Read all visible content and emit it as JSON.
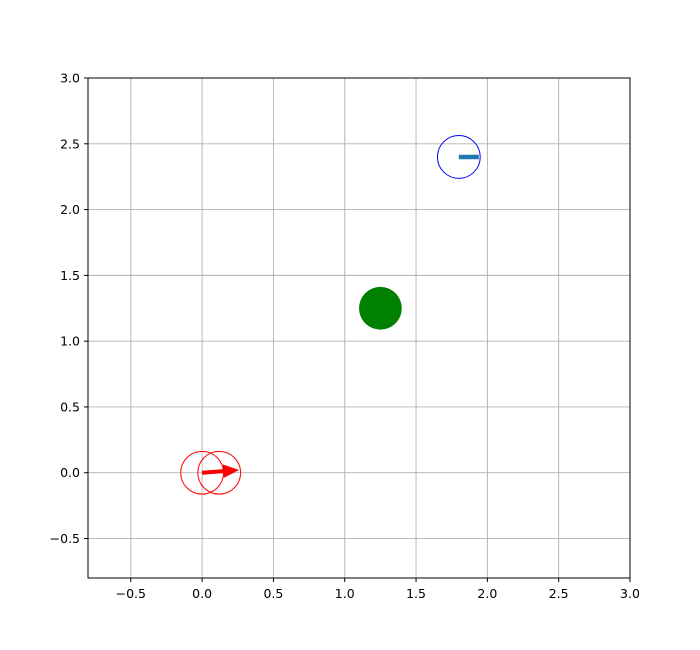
{
  "chart_data": {
    "type": "scatter",
    "title": "",
    "xlabel": "",
    "ylabel": "",
    "xlim": [
      -0.8,
      3.0
    ],
    "ylim": [
      -0.8,
      3.0
    ],
    "grid": true,
    "x_ticks": [
      -0.5,
      0.0,
      0.5,
      1.0,
      1.5,
      2.0,
      2.5,
      3.0
    ],
    "y_ticks": [
      -0.5,
      0.0,
      0.5,
      1.0,
      1.5,
      2.0,
      2.5,
      3.0
    ],
    "x_tick_labels": [
      "−0.5",
      "0.0",
      "0.5",
      "1.0",
      "1.5",
      "2.0",
      "2.5",
      "3.0"
    ],
    "y_tick_labels": [
      "−0.5",
      "0.0",
      "0.5",
      "1.0",
      "1.5",
      "2.0",
      "2.5",
      "3.0"
    ],
    "goal": {
      "x": 1.25,
      "y": 1.25,
      "radius": 0.15,
      "color": "#008000"
    },
    "agents": [
      {
        "x": 0.0,
        "y": 0.0,
        "radius": 0.15,
        "color": "#ff0000"
      },
      {
        "x": 0.12,
        "y": 0.0,
        "radius": 0.15,
        "color": "#ff0000"
      },
      {
        "x": 1.8,
        "y": 2.4,
        "radius": 0.15,
        "color": "#0000ff"
      }
    ],
    "headings": [
      {
        "x": 0.0,
        "y": 0.0,
        "dx": 0.25,
        "dy": 0.02,
        "color": "#ff0000"
      },
      {
        "x": 1.8,
        "y": 2.4,
        "dx": 0.14,
        "dy": 0.0,
        "color": "#1f77b4"
      }
    ],
    "axis_color": "#000000",
    "grid_color": "#b0b0b0"
  }
}
